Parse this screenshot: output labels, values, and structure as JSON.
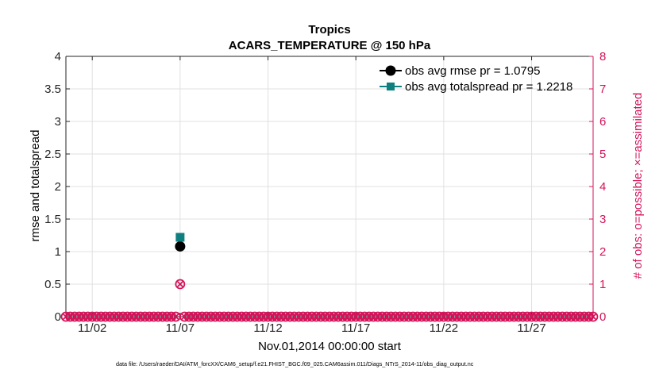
{
  "chart_data": {
    "type": "scatter",
    "title": "Tropics",
    "subtitle": "ACARS_TEMPERATURE @ 150 hPa",
    "xlabel": "Nov.01,2014 00:00:00 start",
    "ylabel_left": "rmse and totalspread",
    "ylabel_right": "# of obs: o=possible; ×=assimilated",
    "footer": "data file: /Users/raeder/DAI/ATM_forcXX/CAM6_setup/f.e21.FHIST_BGC.f09_025.CAM6assim.011/Diags_NTrS_2014-11/obs_diag_output.nc",
    "xlim": [
      0.5,
      30.5
    ],
    "ylim_left": [
      0,
      4
    ],
    "ylim_right": [
      0,
      8
    ],
    "x_ticks": [
      {
        "x": 2,
        "label": "11/02"
      },
      {
        "x": 7,
        "label": "11/07"
      },
      {
        "x": 12,
        "label": "11/12"
      },
      {
        "x": 17,
        "label": "11/17"
      },
      {
        "x": 22,
        "label": "11/22"
      },
      {
        "x": 27,
        "label": "11/27"
      }
    ],
    "y_ticks_left": [
      "0",
      "0.5",
      "1",
      "1.5",
      "2",
      "2.5",
      "3",
      "3.5",
      "4"
    ],
    "y_ticks_right": [
      "0",
      "1",
      "2",
      "3",
      "4",
      "5",
      "6",
      "7",
      "8"
    ],
    "grid": true,
    "legend_position": "top-right",
    "colors": {
      "rmse": "#000000",
      "totalspread": "#0e8080",
      "obs_count": "#d4145a",
      "axes": "#262626",
      "grid": "#e0e0e0"
    },
    "series": [
      {
        "name": "obs avg rmse pr = 1.0795",
        "axis": "left",
        "marker": "circle",
        "x": [
          7
        ],
        "y": [
          1.08
        ]
      },
      {
        "name": "obs avg totalspread pr = 1.2218",
        "axis": "left",
        "marker": "square",
        "x": [
          7
        ],
        "y": [
          1.22
        ]
      },
      {
        "axis": "right",
        "marker": "circle-open",
        "x_start": 0.5,
        "x_step": 0.25,
        "values": [
          0,
          0,
          0,
          0,
          0,
          0,
          0,
          0,
          0,
          0,
          0,
          0,
          0,
          0,
          0,
          0,
          0,
          0,
          0,
          0,
          0,
          0,
          0,
          0,
          0,
          0,
          1,
          0,
          0,
          0,
          0,
          0,
          0,
          0,
          0,
          0,
          0,
          0,
          0,
          0,
          0,
          0,
          0,
          0,
          0,
          0,
          0,
          0,
          0,
          0,
          0,
          0,
          0,
          0,
          0,
          0,
          0,
          0,
          0,
          0,
          0,
          0,
          0,
          0,
          0,
          0,
          0,
          0,
          0,
          0,
          0,
          0,
          0,
          0,
          0,
          0,
          0,
          0,
          0,
          0,
          0,
          0,
          0,
          0,
          0,
          0,
          0,
          0,
          0,
          0,
          0,
          0,
          0,
          0,
          0,
          0,
          0,
          0,
          0,
          0,
          0,
          0,
          0,
          0,
          0,
          0,
          0,
          0,
          0,
          0,
          0,
          0,
          0,
          0,
          0,
          0,
          0,
          0,
          0,
          0,
          0
        ]
      },
      {
        "axis": "right",
        "marker": "x",
        "x_start": 0.5,
        "x_step": 0.25,
        "values": [
          0,
          0,
          0,
          0,
          0,
          0,
          0,
          0,
          0,
          0,
          0,
          0,
          0,
          0,
          0,
          0,
          0,
          0,
          0,
          0,
          0,
          0,
          0,
          0,
          0,
          0,
          1,
          0,
          0,
          0,
          0,
          0,
          0,
          0,
          0,
          0,
          0,
          0,
          0,
          0,
          0,
          0,
          0,
          0,
          0,
          0,
          0,
          0,
          0,
          0,
          0,
          0,
          0,
          0,
          0,
          0,
          0,
          0,
          0,
          0,
          0,
          0,
          0,
          0,
          0,
          0,
          0,
          0,
          0,
          0,
          0,
          0,
          0,
          0,
          0,
          0,
          0,
          0,
          0,
          0,
          0,
          0,
          0,
          0,
          0,
          0,
          0,
          0,
          0,
          0,
          0,
          0,
          0,
          0,
          0,
          0,
          0,
          0,
          0,
          0,
          0,
          0,
          0,
          0,
          0,
          0,
          0,
          0,
          0,
          0,
          0,
          0,
          0,
          0,
          0,
          0,
          0,
          0,
          0,
          0,
          0
        ]
      }
    ]
  }
}
